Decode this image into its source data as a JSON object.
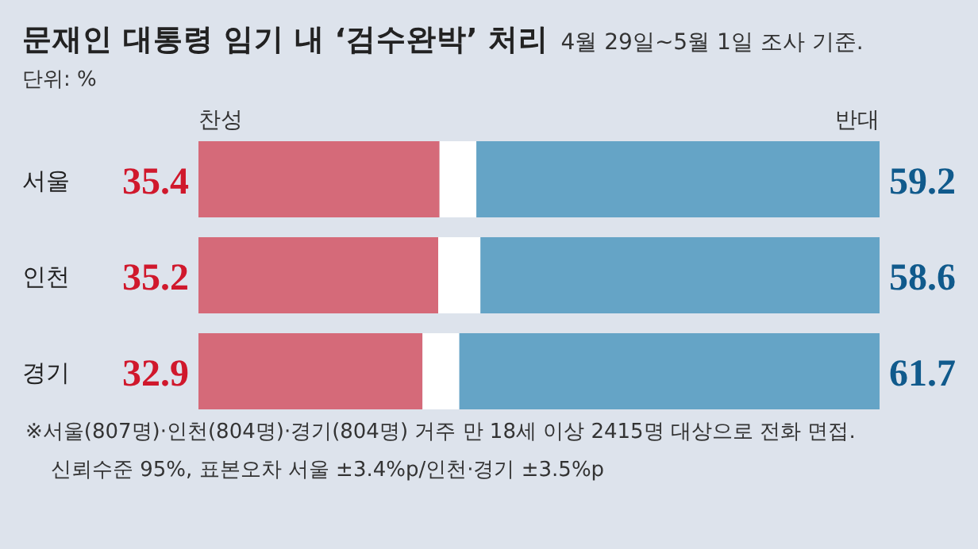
{
  "chart_data": {
    "type": "bar",
    "orientation": "horizontal",
    "stacked": true,
    "title": "문재인 대통령 임기 내 ‘검수완박’ 처리",
    "subtitle": "4월 29일~5월 1일 조사 기준.",
    "categories": [
      "서울",
      "인천",
      "경기"
    ],
    "series": [
      {
        "name": "찬성",
        "color": "#d56a79",
        "values": [
          35.4,
          35.2,
          32.9
        ],
        "value_labels": [
          "35.4",
          "35.2",
          "32.9"
        ]
      },
      {
        "color": "#ffffff",
        "values": [
          5.4,
          6.2,
          5.4
        ]
      },
      {
        "name": "반대",
        "color": "#65a4c6",
        "values": [
          59.2,
          58.6,
          61.7
        ],
        "value_labels": [
          "59.2",
          "58.6",
          "61.7"
        ]
      }
    ],
    "annotations": [
      "단위: %",
      "※서울(807명)·인천(804명)·경기(804명) 거주 만 18세 이상 2415명 대상으로 전화 면접.",
      "신뢰수준 95%, 표본오차 서울 ±3.4%p/인천·경기 ±3.5%p"
    ]
  }
}
